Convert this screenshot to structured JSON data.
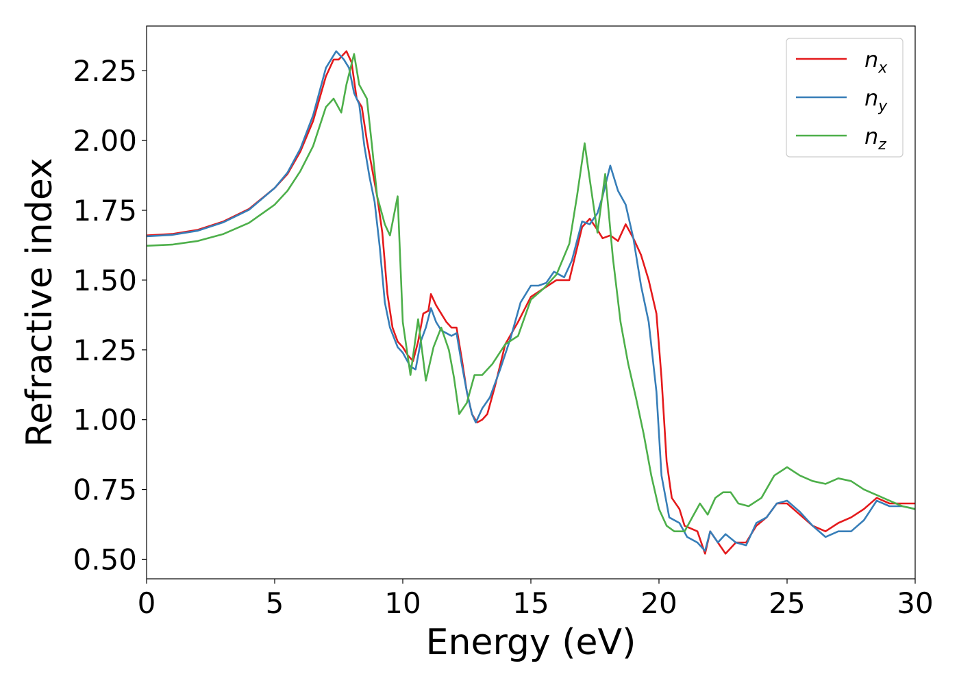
{
  "chart_data": {
    "type": "line",
    "title": "",
    "xlabel": "Energy (eV)",
    "ylabel": "Refractive index",
    "xlim": [
      0,
      30
    ],
    "ylim": [
      0.43,
      2.41
    ],
    "x_ticks": [
      "0",
      "5",
      "10",
      "15",
      "20",
      "25",
      "30"
    ],
    "x_tick_values": [
      0,
      5,
      10,
      15,
      20,
      25,
      30
    ],
    "y_ticks": [
      "0.50",
      "0.75",
      "1.00",
      "1.25",
      "1.50",
      "1.75",
      "2.00",
      "2.25"
    ],
    "y_tick_values": [
      0.5,
      0.75,
      1.0,
      1.25,
      1.5,
      1.75,
      2.0,
      2.25
    ],
    "grid": false,
    "legend_position": "top-right",
    "series": [
      {
        "name": "n",
        "subscript": "x",
        "color": "#e41a1c",
        "points": [
          [
            0,
            1.66
          ],
          [
            1,
            1.665
          ],
          [
            2,
            1.68
          ],
          [
            3,
            1.71
          ],
          [
            4,
            1.755
          ],
          [
            5,
            1.83
          ],
          [
            5.5,
            1.88
          ],
          [
            6,
            1.96
          ],
          [
            6.5,
            2.07
          ],
          [
            7,
            2.23
          ],
          [
            7.3,
            2.29
          ],
          [
            7.5,
            2.29
          ],
          [
            7.8,
            2.32
          ],
          [
            8,
            2.28
          ],
          [
            8.2,
            2.15
          ],
          [
            8.4,
            2.12
          ],
          [
            8.6,
            2.0
          ],
          [
            8.8,
            1.9
          ],
          [
            9,
            1.8
          ],
          [
            9.2,
            1.67
          ],
          [
            9.4,
            1.45
          ],
          [
            9.6,
            1.33
          ],
          [
            9.8,
            1.28
          ],
          [
            10,
            1.26
          ],
          [
            10.2,
            1.23
          ],
          [
            10.4,
            1.21
          ],
          [
            10.6,
            1.28
          ],
          [
            10.8,
            1.38
          ],
          [
            11,
            1.39
          ],
          [
            11.1,
            1.45
          ],
          [
            11.3,
            1.41
          ],
          [
            11.5,
            1.38
          ],
          [
            11.7,
            1.35
          ],
          [
            11.9,
            1.33
          ],
          [
            12.1,
            1.33
          ],
          [
            12.3,
            1.22
          ],
          [
            12.5,
            1.1
          ],
          [
            12.7,
            1.02
          ],
          [
            12.9,
            0.99
          ],
          [
            13.1,
            1.0
          ],
          [
            13.3,
            1.02
          ],
          [
            13.6,
            1.12
          ],
          [
            14,
            1.27
          ],
          [
            14.5,
            1.35
          ],
          [
            15,
            1.44
          ],
          [
            15.5,
            1.47
          ],
          [
            16,
            1.5
          ],
          [
            16.5,
            1.5
          ],
          [
            17,
            1.69
          ],
          [
            17.3,
            1.72
          ],
          [
            17.6,
            1.68
          ],
          [
            17.8,
            1.65
          ],
          [
            18.1,
            1.66
          ],
          [
            18.4,
            1.64
          ],
          [
            18.7,
            1.7
          ],
          [
            19,
            1.65
          ],
          [
            19.3,
            1.59
          ],
          [
            19.6,
            1.5
          ],
          [
            19.9,
            1.38
          ],
          [
            20.1,
            1.15
          ],
          [
            20.3,
            0.85
          ],
          [
            20.5,
            0.72
          ],
          [
            20.8,
            0.68
          ],
          [
            21,
            0.62
          ],
          [
            21.5,
            0.6
          ],
          [
            21.8,
            0.52
          ],
          [
            22,
            0.6
          ],
          [
            22.3,
            0.56
          ],
          [
            22.6,
            0.52
          ],
          [
            23,
            0.56
          ],
          [
            23.4,
            0.56
          ],
          [
            23.8,
            0.62
          ],
          [
            24.2,
            0.65
          ],
          [
            24.6,
            0.7
          ],
          [
            25,
            0.7
          ],
          [
            25.5,
            0.66
          ],
          [
            26,
            0.62
          ],
          [
            26.5,
            0.6
          ],
          [
            27,
            0.63
          ],
          [
            27.5,
            0.65
          ],
          [
            28,
            0.68
          ],
          [
            28.5,
            0.72
          ],
          [
            29,
            0.7
          ],
          [
            29.5,
            0.7
          ],
          [
            30,
            0.7
          ]
        ]
      },
      {
        "name": "n",
        "subscript": "y",
        "color": "#377eb8",
        "points": [
          [
            0,
            1.657
          ],
          [
            1,
            1.662
          ],
          [
            2,
            1.677
          ],
          [
            3,
            1.707
          ],
          [
            4,
            1.752
          ],
          [
            5,
            1.83
          ],
          [
            5.5,
            1.885
          ],
          [
            6,
            1.97
          ],
          [
            6.5,
            2.09
          ],
          [
            7,
            2.26
          ],
          [
            7.4,
            2.32
          ],
          [
            7.7,
            2.29
          ],
          [
            7.9,
            2.26
          ],
          [
            8.1,
            2.17
          ],
          [
            8.3,
            2.13
          ],
          [
            8.5,
            1.98
          ],
          [
            8.7,
            1.87
          ],
          [
            8.9,
            1.78
          ],
          [
            9.1,
            1.62
          ],
          [
            9.3,
            1.42
          ],
          [
            9.5,
            1.33
          ],
          [
            9.8,
            1.26
          ],
          [
            10,
            1.24
          ],
          [
            10.3,
            1.19
          ],
          [
            10.5,
            1.18
          ],
          [
            10.7,
            1.28
          ],
          [
            10.9,
            1.33
          ],
          [
            11.1,
            1.4
          ],
          [
            11.3,
            1.35
          ],
          [
            11.5,
            1.32
          ],
          [
            11.7,
            1.31
          ],
          [
            11.9,
            1.3
          ],
          [
            12.1,
            1.31
          ],
          [
            12.3,
            1.2
          ],
          [
            12.5,
            1.1
          ],
          [
            12.7,
            1.02
          ],
          [
            12.85,
            0.99
          ],
          [
            13.1,
            1.04
          ],
          [
            13.4,
            1.08
          ],
          [
            13.8,
            1.18
          ],
          [
            14.2,
            1.29
          ],
          [
            14.6,
            1.42
          ],
          [
            15,
            1.48
          ],
          [
            15.3,
            1.48
          ],
          [
            15.6,
            1.49
          ],
          [
            15.9,
            1.53
          ],
          [
            16.3,
            1.51
          ],
          [
            16.6,
            1.57
          ],
          [
            17,
            1.71
          ],
          [
            17.3,
            1.7
          ],
          [
            17.6,
            1.74
          ],
          [
            17.8,
            1.8
          ],
          [
            18.1,
            1.91
          ],
          [
            18.4,
            1.82
          ],
          [
            18.7,
            1.77
          ],
          [
            19,
            1.65
          ],
          [
            19.3,
            1.48
          ],
          [
            19.6,
            1.35
          ],
          [
            19.9,
            1.1
          ],
          [
            20.1,
            0.8
          ],
          [
            20.4,
            0.65
          ],
          [
            20.8,
            0.63
          ],
          [
            21.1,
            0.58
          ],
          [
            21.5,
            0.56
          ],
          [
            21.8,
            0.53
          ],
          [
            22,
            0.6
          ],
          [
            22.3,
            0.56
          ],
          [
            22.6,
            0.59
          ],
          [
            23,
            0.56
          ],
          [
            23.4,
            0.55
          ],
          [
            23.8,
            0.63
          ],
          [
            24.2,
            0.65
          ],
          [
            24.6,
            0.7
          ],
          [
            25,
            0.71
          ],
          [
            25.5,
            0.67
          ],
          [
            26,
            0.62
          ],
          [
            26.5,
            0.58
          ],
          [
            27,
            0.6
          ],
          [
            27.5,
            0.6
          ],
          [
            28,
            0.64
          ],
          [
            28.5,
            0.71
          ],
          [
            29,
            0.69
          ],
          [
            29.5,
            0.69
          ],
          [
            30,
            0.68
          ]
        ]
      },
      {
        "name": "n",
        "subscript": "z",
        "color": "#4daf4a",
        "points": [
          [
            0,
            1.623
          ],
          [
            1,
            1.627
          ],
          [
            2,
            1.64
          ],
          [
            3,
            1.665
          ],
          [
            4,
            1.705
          ],
          [
            5,
            1.77
          ],
          [
            5.5,
            1.82
          ],
          [
            6,
            1.89
          ],
          [
            6.5,
            1.98
          ],
          [
            7,
            2.12
          ],
          [
            7.3,
            2.15
          ],
          [
            7.6,
            2.1
          ],
          [
            7.8,
            2.2
          ],
          [
            8.1,
            2.31
          ],
          [
            8.3,
            2.2
          ],
          [
            8.6,
            2.15
          ],
          [
            8.8,
            1.98
          ],
          [
            9,
            1.8
          ],
          [
            9.3,
            1.7
          ],
          [
            9.5,
            1.66
          ],
          [
            9.8,
            1.8
          ],
          [
            10,
            1.35
          ],
          [
            10.3,
            1.16
          ],
          [
            10.6,
            1.36
          ],
          [
            10.9,
            1.14
          ],
          [
            11.2,
            1.26
          ],
          [
            11.5,
            1.33
          ],
          [
            11.8,
            1.25
          ],
          [
            12,
            1.15
          ],
          [
            12.2,
            1.02
          ],
          [
            12.5,
            1.06
          ],
          [
            12.8,
            1.16
          ],
          [
            13.1,
            1.16
          ],
          [
            13.5,
            1.2
          ],
          [
            14,
            1.27
          ],
          [
            14.5,
            1.3
          ],
          [
            15,
            1.43
          ],
          [
            15.5,
            1.47
          ],
          [
            16,
            1.52
          ],
          [
            16.5,
            1.63
          ],
          [
            16.8,
            1.8
          ],
          [
            17.1,
            1.99
          ],
          [
            17.3,
            1.86
          ],
          [
            17.6,
            1.67
          ],
          [
            17.9,
            1.88
          ],
          [
            18.2,
            1.58
          ],
          [
            18.5,
            1.35
          ],
          [
            18.8,
            1.2
          ],
          [
            19.1,
            1.08
          ],
          [
            19.4,
            0.95
          ],
          [
            19.7,
            0.8
          ],
          [
            20,
            0.68
          ],
          [
            20.3,
            0.62
          ],
          [
            20.6,
            0.6
          ],
          [
            21,
            0.6
          ],
          [
            21.3,
            0.65
          ],
          [
            21.6,
            0.7
          ],
          [
            21.9,
            0.66
          ],
          [
            22.2,
            0.72
          ],
          [
            22.5,
            0.74
          ],
          [
            22.8,
            0.74
          ],
          [
            23.1,
            0.7
          ],
          [
            23.5,
            0.69
          ],
          [
            24,
            0.72
          ],
          [
            24.5,
            0.8
          ],
          [
            25,
            0.83
          ],
          [
            25.5,
            0.8
          ],
          [
            26,
            0.78
          ],
          [
            26.5,
            0.77
          ],
          [
            27,
            0.79
          ],
          [
            27.5,
            0.78
          ],
          [
            28,
            0.75
          ],
          [
            28.5,
            0.73
          ],
          [
            29,
            0.71
          ],
          [
            29.5,
            0.69
          ],
          [
            30,
            0.68
          ]
        ]
      }
    ]
  }
}
